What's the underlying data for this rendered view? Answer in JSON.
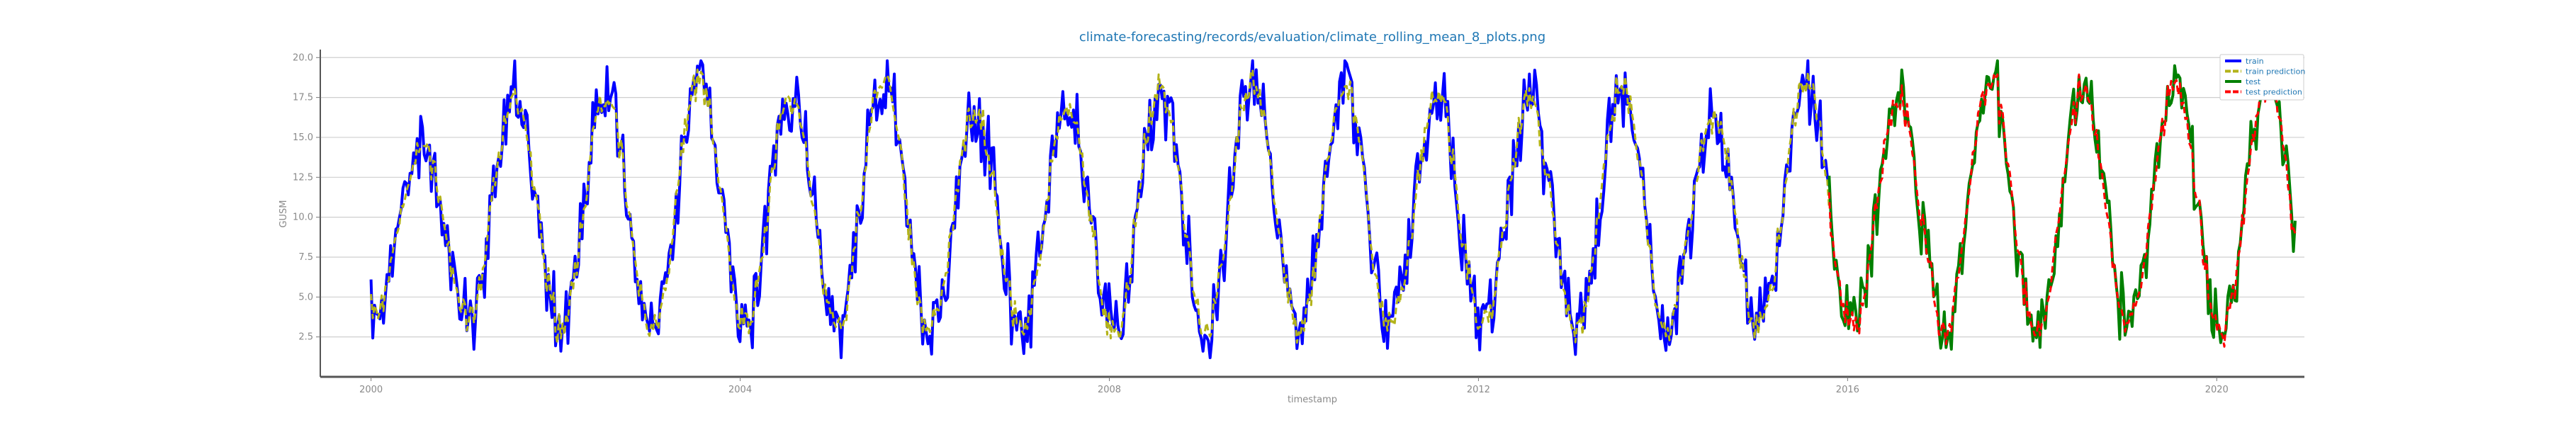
{
  "chart_data": {
    "type": "line",
    "title": "climate-forecasting/records/evaluation/climate_rolling_mean_8_plots.png",
    "xlabel": "timestamp",
    "ylabel": "GUSM",
    "xlim": [
      1999.45,
      2020.95
    ],
    "ylim": [
      0,
      20.5
    ],
    "x_ticks": [
      2000,
      2004,
      2008,
      2012,
      2016,
      2020
    ],
    "x_tick_labels": [
      "2000",
      "2004",
      "2008",
      "2012",
      "2016",
      "2020"
    ],
    "y_ticks": [
      2.5,
      5.0,
      7.5,
      10.0,
      12.5,
      15.0,
      17.5,
      20.0
    ],
    "y_tick_labels": [
      "2.5",
      "5.0",
      "7.5",
      "10.0",
      "12.5",
      "15.0",
      "17.5",
      "20.0"
    ],
    "grid": "horizontal",
    "legend_position": "top-right",
    "series": [
      {
        "name": "train",
        "color": "#0000ff",
        "style": "solid",
        "x_start": 2000.0,
        "x_end": 2015.8,
        "points_per_year": 52,
        "annual_min": [
          4.0,
          3.5,
          3.2,
          3.0,
          3.2,
          3.0,
          3.0,
          2.8,
          2.8,
          3.0,
          3.0,
          3.2,
          3.2,
          2.8,
          3.0,
          3.5
        ],
        "annual_max": [
          14.5,
          17.5,
          17.5,
          18.5,
          17.5,
          18.5,
          16.5,
          17.0,
          18.0,
          18.5,
          18.0,
          17.5,
          17.0,
          18.0,
          16.5,
          18.5
        ],
        "noise": 2.6
      },
      {
        "name": "train prediction",
        "color": "#b3b31a",
        "style": "dashed",
        "x_start": 2000.0,
        "x_end": 2015.8,
        "points_per_year": 52,
        "annual_min": [
          4.0,
          3.5,
          3.2,
          3.0,
          3.2,
          3.0,
          3.0,
          2.8,
          2.8,
          3.0,
          3.0,
          3.2,
          3.2,
          2.8,
          3.0,
          3.5
        ],
        "annual_max": [
          14.5,
          17.5,
          17.5,
          18.5,
          17.5,
          18.5,
          16.5,
          17.0,
          18.0,
          18.5,
          18.0,
          17.5,
          17.0,
          18.0,
          16.5,
          18.5
        ],
        "noise": 1.2
      },
      {
        "name": "test",
        "color": "#008000",
        "style": "solid",
        "x_start": 2015.8,
        "x_end": 2020.85,
        "points_per_year": 52,
        "annual_min": [
          3.0,
          3.0,
          3.0,
          3.2,
          3.0,
          3.0
        ],
        "annual_max": [
          17.5,
          18.5,
          18.0,
          18.5,
          18.5,
          18.0
        ],
        "noise": 2.5
      },
      {
        "name": "test prediction",
        "color": "#ff0000",
        "style": "dashed",
        "x_start": 2015.8,
        "x_end": 2020.85,
        "points_per_year": 52,
        "annual_min": [
          3.0,
          3.0,
          3.0,
          3.2,
          3.0,
          3.0
        ],
        "annual_max": [
          17.5,
          18.5,
          18.0,
          18.5,
          18.5,
          18.0
        ],
        "noise": 1.3
      }
    ]
  }
}
